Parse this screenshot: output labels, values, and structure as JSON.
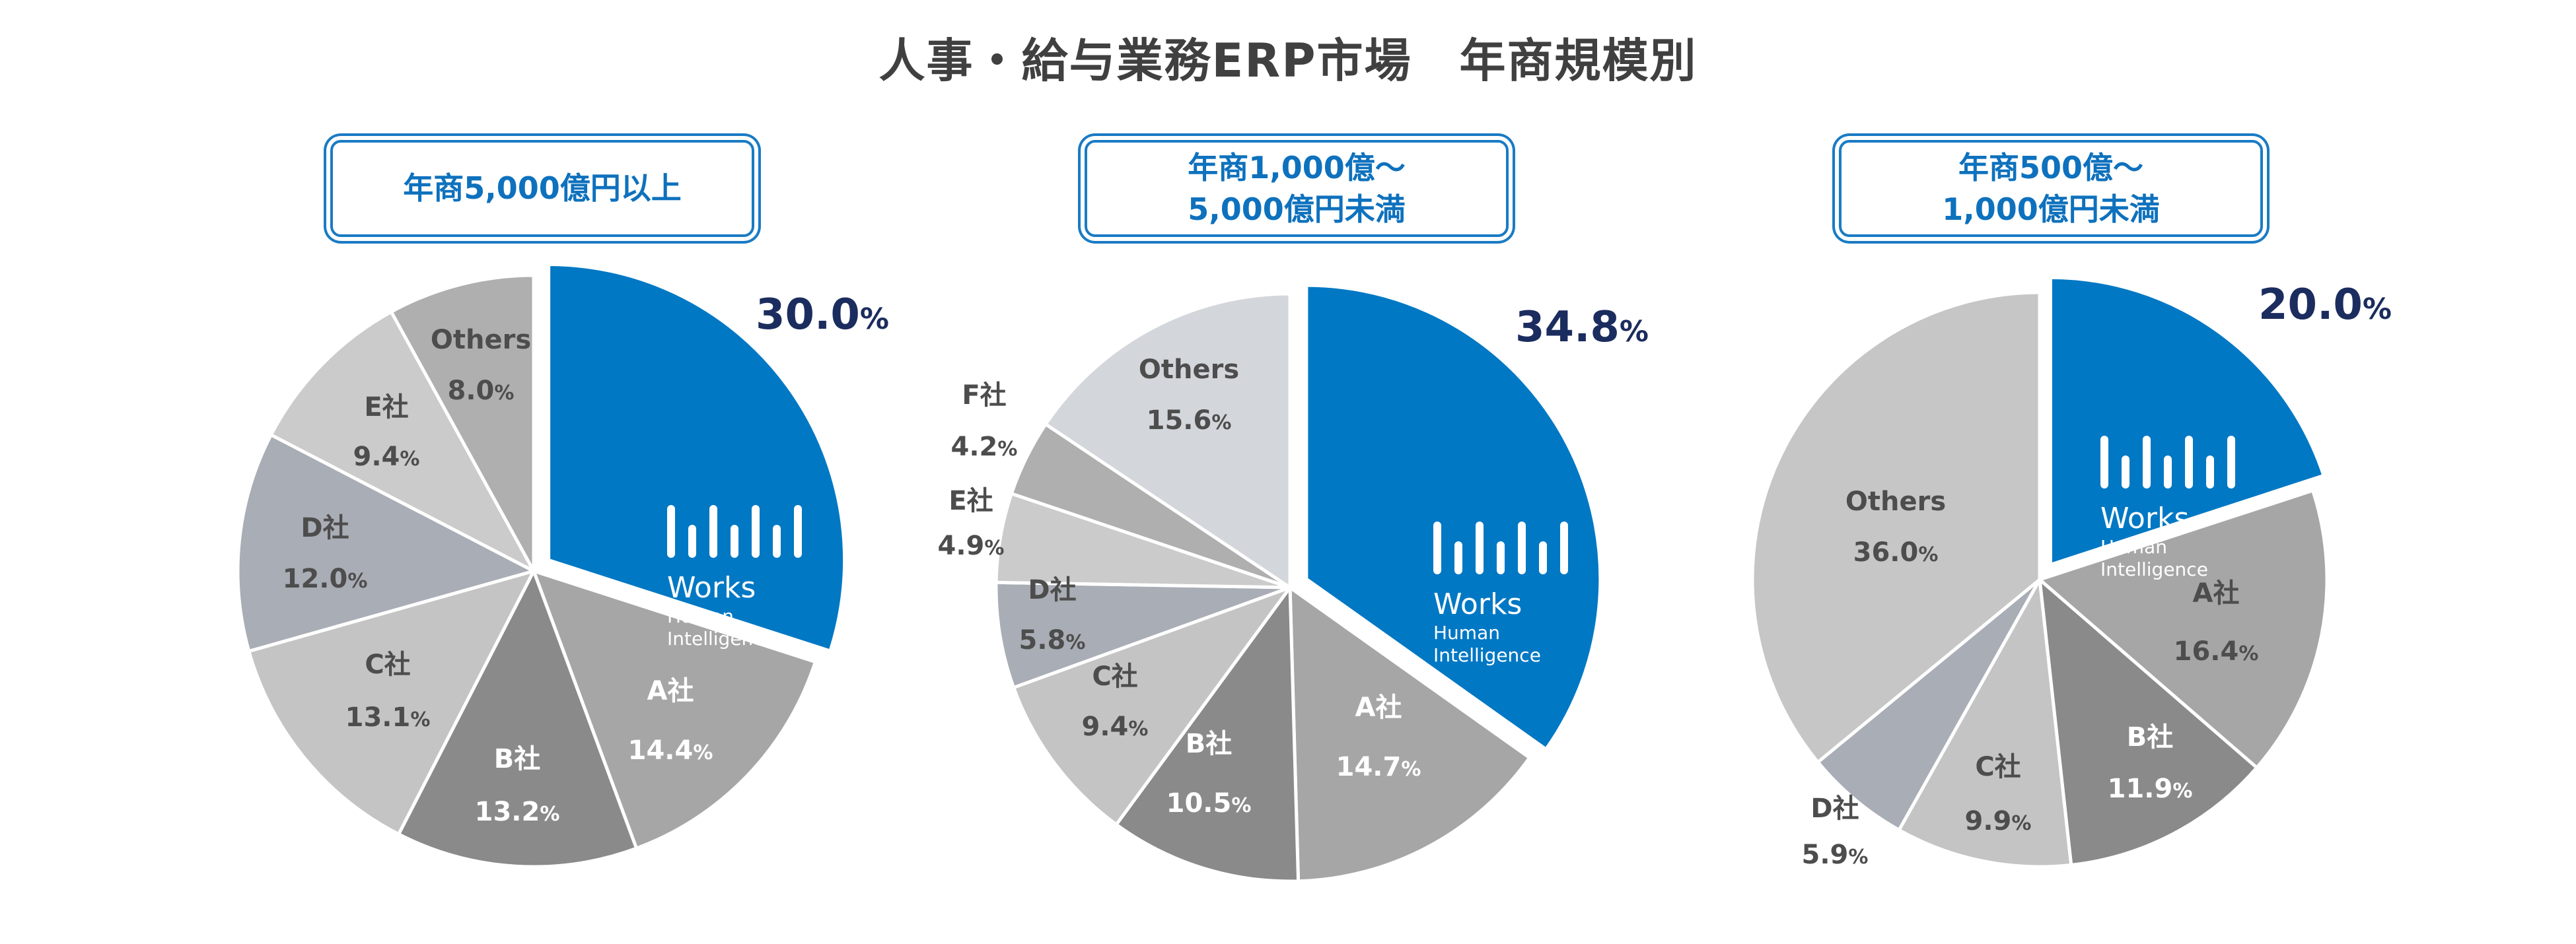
{
  "title": "人事・給与業務ERP市場　年商規模別",
  "brand": {
    "name": "Works",
    "line2": "Human",
    "line3": "Intelligence",
    "color": "#0078c4",
    "icon": "works-human-intelligence-logo"
  },
  "colors": {
    "brand": "#0078c4",
    "pct_highlight": "#1b2c5e",
    "label_dark": "#4d4d4d",
    "label_light": "#ffffff",
    "box_border": "#1a7bc4",
    "box_text": "#0e71bd"
  },
  "categories": [
    {
      "line1": "年商5,000億円以上",
      "line2": ""
    },
    {
      "line1": "年商1,000億～",
      "line2": "5,000億円未満"
    },
    {
      "line1": "年商500億～",
      "line2": "1,000億円未満"
    }
  ],
  "chart_data": [
    {
      "type": "pie",
      "title": "年商5,000億円以上",
      "series": [
        {
          "name": "Works Human Intelligence",
          "value": 30.0,
          "label": "30.0",
          "unit": "%"
        },
        {
          "name": "A社",
          "value": 14.4,
          "label": "14.4",
          "unit": "%"
        },
        {
          "name": "B社",
          "value": 13.2,
          "label": "13.2",
          "unit": "%"
        },
        {
          "name": "C社",
          "value": 13.1,
          "label": "13.1",
          "unit": "%"
        },
        {
          "name": "D社",
          "value": 12.0,
          "label": "12.0",
          "unit": "%"
        },
        {
          "name": "E社",
          "value": 9.4,
          "label": "9.4",
          "unit": "%"
        },
        {
          "name": "Others",
          "value": 8.0,
          "label": "8.0",
          "unit": "%"
        }
      ],
      "colors": [
        "#0078c4",
        "#a6a6a6",
        "#8a8a8a",
        "#c4c4c4",
        "#a9adb5",
        "#cbcbcb",
        "#afafaf"
      ]
    },
    {
      "type": "pie",
      "title": "年商1,000億～5,000億円未満",
      "series": [
        {
          "name": "Works Human Intelligence",
          "value": 34.8,
          "label": "34.8",
          "unit": "%"
        },
        {
          "name": "A社",
          "value": 14.7,
          "label": "14.7",
          "unit": "%"
        },
        {
          "name": "B社",
          "value": 10.5,
          "label": "10.5",
          "unit": "%"
        },
        {
          "name": "C社",
          "value": 9.4,
          "label": "9.4",
          "unit": "%"
        },
        {
          "name": "D社",
          "value": 5.8,
          "label": "5.8",
          "unit": "%"
        },
        {
          "name": "E社",
          "value": 4.9,
          "label": "4.9",
          "unit": "%"
        },
        {
          "name": "F社",
          "value": 4.2,
          "label": "4.2",
          "unit": "%"
        },
        {
          "name": "Others",
          "value": 15.6,
          "label": "15.6",
          "unit": "%"
        }
      ],
      "colors": [
        "#0078c4",
        "#a6a6a6",
        "#8a8a8a",
        "#c4c4c4",
        "#a9adb5",
        "#cbcbcb",
        "#afafaf",
        "#d3d6da"
      ]
    },
    {
      "type": "pie",
      "title": "年商500億～1,000億円未満",
      "series": [
        {
          "name": "Works Human Intelligence",
          "value": 20.0,
          "label": "20.0",
          "unit": "%"
        },
        {
          "name": "A社",
          "value": 16.4,
          "label": "16.4",
          "unit": "%"
        },
        {
          "name": "B社",
          "value": 11.9,
          "label": "11.9",
          "unit": "%"
        },
        {
          "name": "C社",
          "value": 9.9,
          "label": "9.9",
          "unit": "%"
        },
        {
          "name": "D社",
          "value": 5.9,
          "label": "5.9",
          "unit": "%"
        },
        {
          "name": "Others",
          "value": 36.0,
          "label": "36.0",
          "unit": "%"
        }
      ],
      "colors": [
        "#0078c4",
        "#a6a6a6",
        "#8a8a8a",
        "#c4c4c4",
        "#a9adb5",
        "#c6c6c6"
      ]
    }
  ]
}
